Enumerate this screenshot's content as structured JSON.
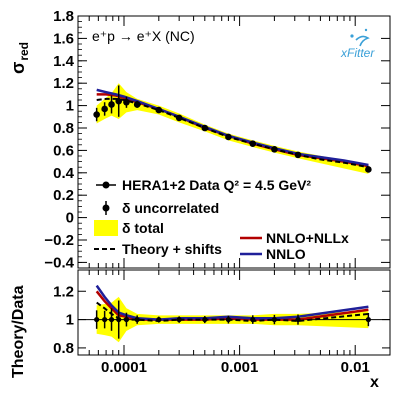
{
  "figure": {
    "process": "e⁺p → e⁺X (NC)",
    "logo": "xFitter",
    "ylabel_top": "σ",
    "ylabel_top_sub": "red",
    "ylabel_bottom": "Theory/Data",
    "xlabel": "x"
  },
  "legend": {
    "data": "HERA1+2 Data Q² = 4.5 GeV²",
    "uncorrelated": "δ uncorrelated",
    "total": "δ total",
    "shifts": "Theory + shifts",
    "nnlo_nllx": "NNLO+NLLx",
    "nnlo": "NNLO"
  },
  "colors": {
    "total_band": "#ffff00",
    "nnlo_nllx": "#b30000",
    "nnlo": "#1f1f99",
    "data": "#000000",
    "logo": "#3aa0d8"
  },
  "chart_data": [
    {
      "type": "scatter",
      "panel": "main",
      "xscale": "log",
      "xlim": [
        4e-05,
        0.02
      ],
      "ylim": [
        -0.45,
        1.8
      ],
      "yticks": [
        "−0.4",
        "−0.2",
        "0",
        "0.2",
        "0.4",
        "0.6",
        "0.8",
        "1",
        "1.2",
        "1.4",
        "1.6",
        "1.8"
      ],
      "xticks": [
        "0.0001",
        "0.001",
        "0.01"
      ],
      "ylabel": "σred",
      "series": [
        {
          "name": "HERA1+2 Data Q² = 4.5 GeV²",
          "x": [
            5.8e-05,
            6.8e-05,
            7.8e-05,
            9e-05,
            0.000105,
            0.00013,
            0.0002,
            0.0003,
            0.0005,
            0.0008,
            0.0013,
            0.002,
            0.0032,
            0.013
          ],
          "y": [
            0.92,
            0.97,
            1.01,
            1.04,
            1.03,
            1.01,
            0.96,
            0.89,
            0.8,
            0.72,
            0.66,
            0.61,
            0.56,
            0.43
          ],
          "err_uncorr": [
            0.06,
            0.06,
            0.08,
            0.14,
            0.05,
            0.03,
            0.02,
            0.02,
            0.02,
            0.02,
            0.02,
            0.02,
            0.02,
            0.02
          ],
          "err_total": [
            0.08,
            0.09,
            0.1,
            0.16,
            0.09,
            0.05,
            0.04,
            0.04,
            0.03,
            0.03,
            0.03,
            0.03,
            0.03,
            0.04
          ]
        },
        {
          "name": "NNLO+NLLx",
          "x": [
            5.8e-05,
            7e-05,
            8.5e-05,
            0.0001,
            0.00013,
            0.0002,
            0.0003,
            0.0005,
            0.0008,
            0.0013,
            0.002,
            0.0032,
            0.005,
            0.008,
            0.013
          ],
          "y": [
            1.1,
            1.1,
            1.09,
            1.07,
            1.03,
            0.97,
            0.9,
            0.8,
            0.73,
            0.66,
            0.61,
            0.56,
            0.53,
            0.5,
            0.46
          ]
        },
        {
          "name": "NNLO",
          "x": [
            5.8e-05,
            7e-05,
            8.5e-05,
            0.0001,
            0.00013,
            0.0002,
            0.0003,
            0.0005,
            0.0008,
            0.0013,
            0.002,
            0.0032,
            0.005,
            0.008,
            0.013
          ],
          "y": [
            1.14,
            1.12,
            1.1,
            1.08,
            1.04,
            0.97,
            0.9,
            0.81,
            0.73,
            0.67,
            0.62,
            0.57,
            0.54,
            0.51,
            0.47
          ]
        },
        {
          "name": "Theory + shifts",
          "x": [
            5.8e-05,
            7e-05,
            8.5e-05,
            0.0001,
            0.00013,
            0.0002,
            0.0003,
            0.0005,
            0.0008,
            0.0013,
            0.002,
            0.0032,
            0.005,
            0.008,
            0.013
          ],
          "y": [
            1.05,
            1.06,
            1.06,
            1.05,
            1.02,
            0.96,
            0.89,
            0.8,
            0.72,
            0.66,
            0.61,
            0.56,
            0.52,
            0.49,
            0.45
          ]
        }
      ]
    },
    {
      "type": "line",
      "panel": "ratio",
      "xscale": "log",
      "xlim": [
        4e-05,
        0.02
      ],
      "ylim": [
        0.75,
        1.35
      ],
      "yticks": [
        "0.8",
        "1",
        "1.2"
      ],
      "ylabel": "Theory/Data",
      "series": [
        {
          "name": "δ total",
          "x": [
            5.8e-05,
            6.8e-05,
            7.8e-05,
            9e-05,
            0.000105,
            0.00013,
            0.0002,
            0.0003,
            0.0005,
            0.0008,
            0.0013,
            0.002,
            0.0032,
            0.013
          ],
          "err": [
            0.1,
            0.11,
            0.12,
            0.16,
            0.08,
            0.04,
            0.03,
            0.03,
            0.03,
            0.03,
            0.03,
            0.04,
            0.04,
            0.06
          ]
        },
        {
          "name": "NNLO+NLLx",
          "x": [
            5.8e-05,
            6.8e-05,
            7.8e-05,
            9e-05,
            0.000105,
            0.00013,
            0.0002,
            0.0003,
            0.0005,
            0.0008,
            0.0013,
            0.002,
            0.0032,
            0.013
          ],
          "y": [
            1.2,
            1.13,
            1.08,
            1.03,
            1.02,
            1.0,
            1.0,
            1.0,
            1.0,
            1.01,
            1.0,
            1.0,
            1.0,
            1.07
          ]
        },
        {
          "name": "NNLO",
          "x": [
            5.8e-05,
            6.8e-05,
            7.8e-05,
            9e-05,
            0.000105,
            0.00013,
            0.0002,
            0.0003,
            0.0005,
            0.0008,
            0.0013,
            0.002,
            0.0032,
            0.013
          ],
          "y": [
            1.24,
            1.16,
            1.1,
            1.05,
            1.03,
            1.01,
            1.0,
            1.01,
            1.01,
            1.02,
            1.01,
            1.01,
            1.02,
            1.09
          ]
        },
        {
          "name": "Theory + shifts",
          "x": [
            5.8e-05,
            6.8e-05,
            7.8e-05,
            9e-05,
            0.000105,
            0.00013,
            0.0002,
            0.0003,
            0.0005,
            0.0008,
            0.0013,
            0.002,
            0.0032,
            0.013
          ],
          "y": [
            1.12,
            1.08,
            1.04,
            1.01,
            1.0,
            1.0,
            0.99,
            1.0,
            1.0,
            1.0,
            0.99,
            1.0,
            0.99,
            1.04
          ]
        }
      ]
    }
  ]
}
